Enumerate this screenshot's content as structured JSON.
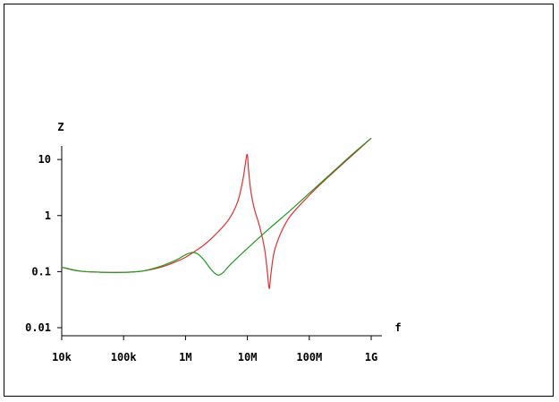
{
  "chart_data": {
    "type": "line",
    "title": "",
    "xlabel": "f",
    "ylabel": "Z",
    "x_scale": "log",
    "y_scale": "log",
    "xlim": [
      10000,
      1000000000
    ],
    "ylim": [
      0.01,
      14
    ],
    "x_ticks": [
      {
        "value": 10000,
        "label": "10k"
      },
      {
        "value": 100000,
        "label": "100k"
      },
      {
        "value": 1000000,
        "label": "1M"
      },
      {
        "value": 10000000,
        "label": "10M"
      },
      {
        "value": 100000000,
        "label": "100M"
      },
      {
        "value": 1000000000,
        "label": "1G"
      }
    ],
    "y_ticks": [
      {
        "value": 0.01,
        "label": "0.01"
      },
      {
        "value": 0.1,
        "label": "0.1"
      },
      {
        "value": 1,
        "label": "1"
      },
      {
        "value": 10,
        "label": "10"
      }
    ],
    "grid": false,
    "legend": "none",
    "series": [
      {
        "color": "#e03030",
        "points": [
          [
            10000,
            0.12
          ],
          [
            20000,
            0.102
          ],
          [
            50000,
            0.097
          ],
          [
            100000,
            0.097
          ],
          [
            200000,
            0.102
          ],
          [
            400000,
            0.12
          ],
          [
            700000,
            0.15
          ],
          [
            1000000,
            0.18
          ],
          [
            1500000,
            0.24
          ],
          [
            2000000,
            0.3
          ],
          [
            3000000,
            0.45
          ],
          [
            5000000,
            0.85
          ],
          [
            7000000,
            1.8
          ],
          [
            8500000,
            4.5
          ],
          [
            9500000,
            10
          ],
          [
            10000000,
            12
          ],
          [
            10500000,
            6
          ],
          [
            11500000,
            2.5
          ],
          [
            13000000,
            1.3
          ],
          [
            16000000,
            0.6
          ],
          [
            19000000,
            0.25
          ],
          [
            21000000,
            0.1
          ],
          [
            22500000,
            0.05
          ],
          [
            24000000,
            0.09
          ],
          [
            27000000,
            0.22
          ],
          [
            35000000,
            0.5
          ],
          [
            50000000,
            1.0
          ],
          [
            100000000,
            2.3
          ],
          [
            200000000,
            4.8
          ],
          [
            500000000,
            12
          ],
          [
            1000000000,
            24
          ]
        ]
      },
      {
        "color": "#1e9a1e",
        "points": [
          [
            10000,
            0.12
          ],
          [
            20000,
            0.102
          ],
          [
            50000,
            0.097
          ],
          [
            100000,
            0.097
          ],
          [
            200000,
            0.102
          ],
          [
            400000,
            0.125
          ],
          [
            700000,
            0.16
          ],
          [
            1000000,
            0.2
          ],
          [
            1300000,
            0.22
          ],
          [
            1600000,
            0.205
          ],
          [
            2000000,
            0.16
          ],
          [
            2500000,
            0.115
          ],
          [
            3000000,
            0.093
          ],
          [
            3500000,
            0.087
          ],
          [
            4200000,
            0.1
          ],
          [
            5000000,
            0.125
          ],
          [
            7000000,
            0.18
          ],
          [
            10000000,
            0.26
          ],
          [
            20000000,
            0.52
          ],
          [
            50000000,
            1.25
          ],
          [
            100000000,
            2.5
          ],
          [
            200000000,
            5.0
          ],
          [
            500000000,
            12.5
          ],
          [
            1000000000,
            24
          ]
        ]
      }
    ]
  }
}
